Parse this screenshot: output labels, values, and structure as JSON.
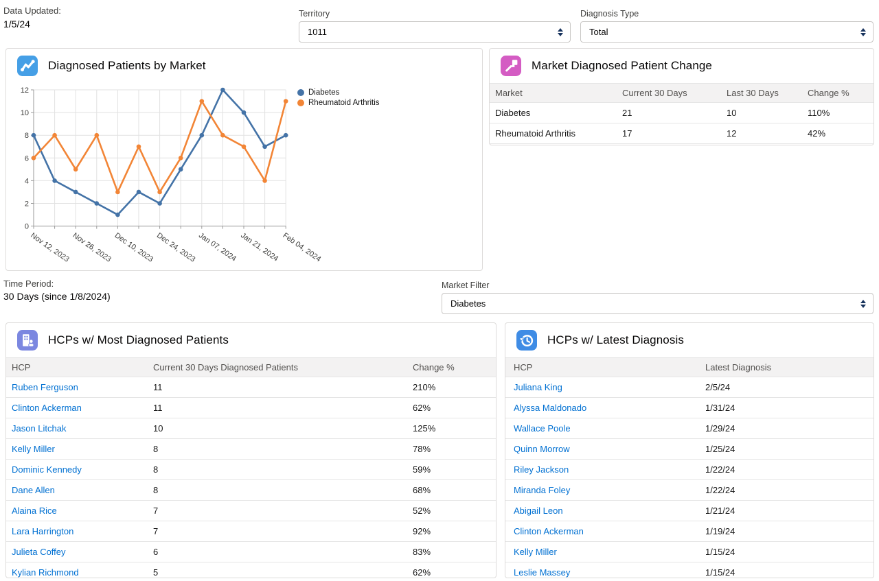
{
  "meta": {
    "data_updated_label": "Data Updated:",
    "data_updated_value": "1/5/24",
    "time_period_label": "Time Period:",
    "time_period_value": "30 Days (since 1/8/2024)"
  },
  "filters": {
    "territory": {
      "label": "Territory",
      "value": "1011"
    },
    "diagnosis_type": {
      "label": "Diagnosis Type",
      "value": "Total"
    },
    "market_filter": {
      "label": "Market Filter",
      "value": "Diabetes"
    }
  },
  "colors": {
    "link": "#0070d2",
    "chart_icon": "#459FE6",
    "market_change_icon": "#D45CC3",
    "hcp_most_icon": "#7B87E0",
    "hcp_latest_icon": "#3F8CE5"
  },
  "cards": {
    "chart": {
      "title": "Diagnosed Patients by Market",
      "icon": "metrics-icon"
    },
    "market_change": {
      "title": "Market Diagnosed Patient Change",
      "icon": "trend-icon",
      "table": {
        "columns": [
          "Market",
          "Current 30 Days",
          "Last 30 Days",
          "Change %"
        ],
        "link_col": -1,
        "rows": [
          [
            "Diabetes",
            "21",
            "10",
            "110%"
          ],
          [
            "Rheumatoid Arthritis",
            "17",
            "12",
            "42%"
          ]
        ]
      }
    },
    "hcp_most": {
      "title": "HCPs w/ Most Diagnosed Patients",
      "icon": "hospital-icon",
      "table": {
        "columns": [
          "HCP",
          "Current 30 Days Diagnosed Patients",
          "Change %"
        ],
        "link_col": 0,
        "rows": [
          [
            "Ruben Ferguson",
            "11",
            "210%"
          ],
          [
            "Clinton Ackerman",
            "11",
            "62%"
          ],
          [
            "Jason Litchak",
            "10",
            "125%"
          ],
          [
            "Kelly Miller",
            "8",
            "78%"
          ],
          [
            "Dominic Kennedy",
            "8",
            "59%"
          ],
          [
            "Dane Allen",
            "8",
            "68%"
          ],
          [
            "Alaina Rice",
            "7",
            "52%"
          ],
          [
            "Lara Harrington",
            "7",
            "92%"
          ],
          [
            "Julieta Coffey",
            "6",
            "83%"
          ],
          [
            "Kylian Richmond",
            "5",
            "62%"
          ]
        ]
      }
    },
    "hcp_latest": {
      "title": "HCPs w/ Latest Diagnosis",
      "icon": "history-icon",
      "table": {
        "columns": [
          "HCP",
          "Latest Diagnosis"
        ],
        "link_col": 0,
        "rows": [
          [
            "Juliana King",
            "2/5/24"
          ],
          [
            "Alyssa Maldonado",
            "1/31/24"
          ],
          [
            "Wallace Poole",
            "1/29/24"
          ],
          [
            "Quinn Morrow",
            "1/25/24"
          ],
          [
            "Riley Jackson",
            "1/22/24"
          ],
          [
            "Miranda Foley",
            "1/22/24"
          ],
          [
            "Abigail Leon",
            "1/21/24"
          ],
          [
            "Clinton Ackerman",
            "1/19/24"
          ],
          [
            "Kelly Miller",
            "1/15/24"
          ],
          [
            "Leslie Massey",
            "1/15/24"
          ]
        ]
      }
    }
  },
  "chart_data": {
    "type": "line",
    "title": "Diagnosed Patients by Market",
    "x": [
      "Nov 12, 2023",
      "Nov 19, 2023",
      "Nov 26, 2023",
      "Dec 03, 2023",
      "Dec 10, 2023",
      "Dec 17, 2023",
      "Dec 24, 2023",
      "Dec 31, 2023",
      "Jan 07, 2024",
      "Jan 14, 2024",
      "Jan 21, 2024",
      "Jan 28, 2024",
      "Feb 04, 2024"
    ],
    "x_tick_labels_shown": [
      "Nov 12, 2023",
      "Nov 26, 2023",
      "Dec 10, 2023",
      "Dec 24, 2023",
      "Jan 07, 2024",
      "Jan 21, 2024",
      "Feb 04, 2024"
    ],
    "series": [
      {
        "name": "Diabetes",
        "color": "#4473A7",
        "values": [
          8,
          4,
          3,
          2,
          1,
          3,
          2,
          5,
          8,
          12,
          10,
          7,
          8
        ]
      },
      {
        "name": "Rheumatoid Arthritis",
        "color": "#F28536",
        "values": [
          6,
          8,
          5,
          8,
          3,
          7,
          3,
          6,
          11,
          8,
          7,
          4,
          11
        ]
      }
    ],
    "ylim": [
      0,
      12
    ],
    "yticks": [
      0,
      2,
      4,
      6,
      8,
      10,
      12
    ],
    "grid": true,
    "legend_position": "right-top"
  }
}
